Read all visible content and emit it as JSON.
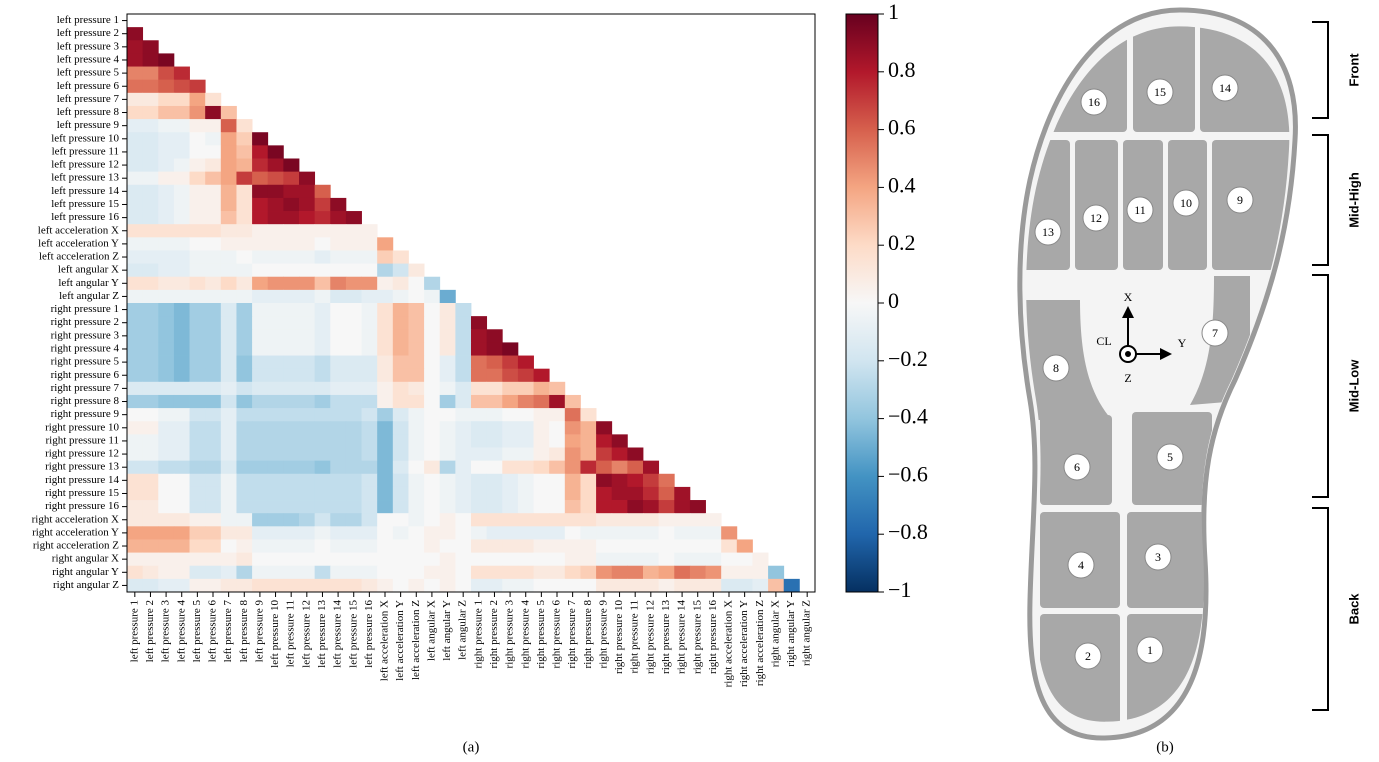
{
  "chart_data": {
    "type": "heatmap",
    "categories": [
      "left pressure 1",
      "left pressure 2",
      "left pressure 3",
      "left pressure 4",
      "left pressure 5",
      "left pressure 6",
      "left pressure 7",
      "left pressure 8",
      "left pressure 9",
      "left pressure 10",
      "left pressure 11",
      "left pressure 12",
      "left pressure 13",
      "left pressure 14",
      "left pressure 15",
      "left pressure 16",
      "left acceleration X",
      "left acceleration Y",
      "left acceleration Z",
      "left angular X",
      "left angular Y",
      "left angular Z",
      "right pressure 1",
      "right pressure 2",
      "right pressure 3",
      "right pressure 4",
      "right pressure 5",
      "right pressure 6",
      "right pressure 7",
      "right pressure 8",
      "right pressure 9",
      "right pressure 10",
      "right pressure 11",
      "right pressure 12",
      "right pressure 13",
      "right pressure 14",
      "right pressure 15",
      "right pressure 16",
      "right acceleration X",
      "right acceleration Y",
      "right acceleration Z",
      "right angular X",
      "right angular Y",
      "right angular Z"
    ],
    "values": [
      [],
      [
        0.9
      ],
      [
        0.85,
        0.9
      ],
      [
        0.85,
        0.9,
        0.95
      ],
      [
        0.5,
        0.5,
        0.65,
        0.75
      ],
      [
        0.55,
        0.55,
        0.6,
        0.65,
        0.7
      ],
      [
        0.1,
        0.1,
        0.2,
        0.2,
        0.4,
        0.15
      ],
      [
        0.2,
        0.2,
        0.3,
        0.3,
        0.45,
        0.9,
        0.3
      ],
      [
        -0.1,
        -0.1,
        -0.05,
        -0.05,
        0.05,
        0.05,
        0.6,
        0.15
      ],
      [
        -0.15,
        -0.15,
        -0.1,
        -0.1,
        0,
        -0.05,
        0.4,
        0.25,
        0.95
      ],
      [
        -0.15,
        -0.15,
        -0.1,
        -0.1,
        0,
        0,
        0.4,
        0.3,
        0.8,
        0.95
      ],
      [
        -0.15,
        -0.15,
        -0.1,
        -0.05,
        0.05,
        0.1,
        0.4,
        0.35,
        0.75,
        0.85,
        0.95
      ],
      [
        -0.05,
        -0.05,
        0.05,
        0.05,
        0.2,
        0.3,
        0.4,
        0.7,
        0.6,
        0.65,
        0.7,
        0.9
      ],
      [
        -0.15,
        -0.15,
        -0.1,
        -0.05,
        0.05,
        0.05,
        0.35,
        0.15,
        0.9,
        0.9,
        0.85,
        0.85,
        0.6
      ],
      [
        -0.15,
        -0.15,
        -0.1,
        -0.05,
        0.05,
        0.05,
        0.35,
        0.15,
        0.8,
        0.85,
        0.9,
        0.85,
        0.7,
        0.9
      ],
      [
        -0.15,
        -0.15,
        -0.1,
        -0.05,
        0.05,
        0.05,
        0.3,
        0.15,
        0.8,
        0.85,
        0.85,
        0.8,
        0.75,
        0.85,
        0.9
      ],
      [
        0.15,
        0.15,
        0.15,
        0.15,
        0.15,
        0.15,
        0.1,
        0.1,
        0.05,
        0.05,
        0.05,
        0.05,
        0.05,
        0.05,
        0.05,
        0.05
      ],
      [
        -0.05,
        -0.05,
        -0.05,
        -0.05,
        0,
        0,
        0.05,
        0.05,
        0.05,
        0.05,
        0.05,
        0.05,
        0,
        0.05,
        0.05,
        0.05,
        0.4
      ],
      [
        -0.1,
        -0.1,
        -0.1,
        -0.1,
        -0.05,
        -0.05,
        -0.05,
        0,
        -0.05,
        -0.05,
        -0.05,
        -0.05,
        -0.1,
        -0.05,
        -0.05,
        -0.05,
        0.25,
        0.15
      ],
      [
        -0.15,
        -0.15,
        -0.1,
        -0.1,
        -0.05,
        -0.05,
        -0.05,
        -0.05,
        0,
        0,
        0,
        0,
        0,
        0,
        0,
        0,
        -0.3,
        -0.2,
        0.1
      ],
      [
        0.15,
        0.15,
        0.1,
        0.1,
        0.15,
        0.1,
        0.2,
        0.1,
        0.4,
        0.45,
        0.45,
        0.45,
        0.3,
        0.5,
        0.45,
        0.45,
        0.05,
        0.1,
        0,
        -0.3
      ],
      [
        -0.05,
        -0.05,
        -0.05,
        -0.05,
        -0.05,
        -0.05,
        -0.05,
        -0.05,
        -0.1,
        -0.1,
        -0.1,
        -0.1,
        -0.05,
        -0.15,
        -0.15,
        -0.1,
        -0.1,
        -0.05,
        0,
        -0.05,
        -0.5
      ],
      [
        -0.35,
        -0.35,
        -0.4,
        -0.45,
        -0.35,
        -0.35,
        -0.15,
        -0.35,
        -0.05,
        -0.05,
        -0.05,
        -0.05,
        -0.1,
        0,
        0,
        -0.05,
        0.15,
        0.35,
        0.3,
        0,
        0.1,
        -0.25
      ],
      [
        -0.35,
        -0.35,
        -0.4,
        -0.45,
        -0.35,
        -0.35,
        -0.15,
        -0.35,
        -0.05,
        -0.05,
        -0.05,
        -0.05,
        -0.1,
        0,
        0,
        -0.05,
        0.15,
        0.35,
        0.3,
        0,
        0.1,
        -0.25,
        0.9
      ],
      [
        -0.35,
        -0.35,
        -0.4,
        -0.45,
        -0.35,
        -0.35,
        -0.15,
        -0.35,
        -0.05,
        -0.05,
        -0.05,
        -0.05,
        -0.1,
        0,
        0,
        -0.05,
        0.15,
        0.35,
        0.3,
        0,
        0.1,
        -0.25,
        0.85,
        0.9
      ],
      [
        -0.35,
        -0.35,
        -0.4,
        -0.45,
        -0.35,
        -0.35,
        -0.15,
        -0.35,
        -0.05,
        -0.05,
        -0.05,
        -0.05,
        -0.1,
        0,
        0,
        -0.05,
        0.15,
        0.35,
        0.3,
        0,
        0.1,
        -0.25,
        0.85,
        0.9,
        0.95
      ],
      [
        -0.35,
        -0.35,
        -0.4,
        -0.45,
        -0.35,
        -0.35,
        -0.15,
        -0.4,
        -0.2,
        -0.2,
        -0.2,
        -0.2,
        -0.25,
        -0.15,
        -0.15,
        -0.15,
        0.1,
        0.3,
        0.3,
        0,
        -0.1,
        -0.25,
        0.55,
        0.6,
        0.7,
        0.8
      ],
      [
        -0.35,
        -0.35,
        -0.4,
        -0.45,
        -0.35,
        -0.35,
        -0.15,
        -0.4,
        -0.2,
        -0.2,
        -0.2,
        -0.2,
        -0.25,
        -0.15,
        -0.15,
        -0.15,
        0.1,
        0.3,
        0.3,
        0,
        -0.1,
        -0.25,
        0.55,
        0.55,
        0.65,
        0.7,
        0.8
      ],
      [
        -0.15,
        -0.15,
        -0.15,
        -0.15,
        -0.15,
        -0.15,
        -0.1,
        -0.2,
        -0.15,
        -0.15,
        -0.15,
        -0.15,
        -0.15,
        -0.1,
        -0.1,
        -0.1,
        0.05,
        0.15,
        0.1,
        0,
        -0.05,
        -0.15,
        0.15,
        0.15,
        0.25,
        0.25,
        0.35,
        0.3
      ],
      [
        -0.35,
        -0.35,
        -0.4,
        -0.4,
        -0.4,
        -0.4,
        -0.2,
        -0.4,
        -0.3,
        -0.3,
        -0.3,
        -0.3,
        -0.35,
        -0.25,
        -0.25,
        -0.25,
        0.05,
        0.15,
        0.15,
        0,
        -0.35,
        -0.15,
        0.3,
        0.3,
        0.4,
        0.5,
        0.55,
        0.85,
        0.3
      ],
      [
        0,
        0,
        -0.05,
        -0.05,
        -0.2,
        -0.2,
        -0.1,
        -0.25,
        -0.25,
        -0.25,
        -0.25,
        -0.25,
        -0.25,
        -0.25,
        -0.25,
        -0.2,
        -0.35,
        -0.15,
        -0.05,
        0,
        0,
        -0.05,
        -0.05,
        -0.05,
        0,
        0,
        0.05,
        0.05,
        0.55,
        0.15
      ],
      [
        0.05,
        0.05,
        -0.1,
        -0.1,
        -0.25,
        -0.25,
        -0.1,
        -0.3,
        -0.3,
        -0.3,
        -0.3,
        -0.3,
        -0.3,
        -0.3,
        -0.3,
        -0.25,
        -0.45,
        -0.2,
        -0.05,
        0,
        -0.05,
        -0.1,
        -0.15,
        -0.15,
        -0.1,
        -0.1,
        0.05,
        0,
        0.45,
        0.35,
        0.9
      ],
      [
        -0.05,
        -0.05,
        -0.1,
        -0.1,
        -0.25,
        -0.25,
        -0.1,
        -0.3,
        -0.3,
        -0.3,
        -0.3,
        -0.3,
        -0.3,
        -0.3,
        -0.3,
        -0.25,
        -0.45,
        -0.2,
        -0.05,
        0,
        -0.05,
        -0.1,
        -0.15,
        -0.15,
        -0.1,
        -0.1,
        0.05,
        0,
        0.4,
        0.35,
        0.8,
        0.9
      ],
      [
        -0.05,
        -0.05,
        -0.1,
        -0.1,
        -0.25,
        -0.25,
        -0.1,
        -0.3,
        -0.3,
        -0.3,
        -0.3,
        -0.3,
        -0.3,
        -0.3,
        -0.3,
        -0.25,
        -0.45,
        -0.2,
        -0.05,
        0,
        -0.05,
        -0.1,
        -0.1,
        -0.1,
        -0.05,
        -0.05,
        0.05,
        0.1,
        0.45,
        0.35,
        0.7,
        0.8,
        0.9
      ],
      [
        -0.2,
        -0.2,
        -0.25,
        -0.25,
        -0.3,
        -0.3,
        -0.15,
        -0.35,
        -0.35,
        -0.35,
        -0.35,
        -0.35,
        -0.4,
        -0.3,
        -0.3,
        -0.3,
        -0.45,
        -0.15,
        0,
        0.1,
        -0.3,
        -0.1,
        0,
        0,
        0.15,
        0.15,
        0.2,
        0.3,
        0.45,
        0.75,
        0.6,
        0.5,
        0.6,
        0.85
      ],
      [
        0.15,
        0.15,
        0,
        0,
        -0.2,
        -0.2,
        -0.05,
        -0.25,
        -0.25,
        -0.25,
        -0.25,
        -0.25,
        -0.25,
        -0.25,
        -0.25,
        -0.2,
        -0.45,
        -0.2,
        -0.05,
        0,
        -0.05,
        -0.1,
        -0.15,
        -0.15,
        -0.1,
        -0.05,
        0,
        0,
        0.35,
        0.2,
        0.9,
        0.85,
        0.8,
        0.7,
        0.55
      ],
      [
        0.15,
        0.15,
        0,
        0,
        -0.2,
        -0.2,
        -0.05,
        -0.25,
        -0.25,
        -0.25,
        -0.25,
        -0.25,
        -0.25,
        -0.25,
        -0.25,
        -0.2,
        -0.45,
        -0.2,
        -0.05,
        0,
        -0.05,
        -0.1,
        -0.15,
        -0.15,
        -0.1,
        -0.05,
        0,
        0,
        0.35,
        0.2,
        0.8,
        0.85,
        0.85,
        0.75,
        0.6,
        0.85
      ],
      [
        0.1,
        0.1,
        0,
        0,
        -0.2,
        -0.2,
        -0.05,
        -0.25,
        -0.25,
        -0.25,
        -0.25,
        -0.25,
        -0.25,
        -0.25,
        -0.25,
        -0.2,
        -0.45,
        -0.2,
        -0.05,
        0,
        -0.05,
        -0.1,
        -0.15,
        -0.15,
        -0.1,
        -0.05,
        0,
        0,
        0.3,
        0.2,
        0.8,
        0.8,
        0.9,
        0.85,
        0.7,
        0.85,
        0.9
      ],
      [
        0.1,
        0.1,
        0.1,
        0.1,
        0.05,
        0.05,
        -0.05,
        -0.05,
        -0.35,
        -0.35,
        -0.35,
        -0.3,
        -0.2,
        -0.3,
        -0.3,
        -0.2,
        0,
        0,
        -0.05,
        0,
        0.05,
        0,
        0.15,
        0.15,
        0.15,
        0.15,
        0.15,
        0.15,
        0.15,
        0.15,
        0.1,
        0.1,
        0.1,
        0.1,
        0.05,
        0.05,
        0.05,
        0.05
      ],
      [
        0.4,
        0.4,
        0.4,
        0.4,
        0.25,
        0.25,
        0.1,
        0.1,
        -0.1,
        -0.1,
        -0.1,
        -0.1,
        -0.05,
        -0.1,
        -0.1,
        -0.1,
        0,
        -0.05,
        0,
        0.05,
        0.05,
        0,
        -0.05,
        -0.1,
        -0.1,
        -0.1,
        -0.1,
        -0.1,
        0,
        -0.05,
        -0.05,
        -0.05,
        -0.05,
        -0.05,
        0,
        -0.05,
        -0.05,
        -0.05,
        0.45
      ],
      [
        0.35,
        0.35,
        0.35,
        0.35,
        0.2,
        0.2,
        0,
        0.05,
        -0.05,
        -0.05,
        -0.05,
        -0.05,
        0,
        -0.05,
        -0.05,
        -0.05,
        0,
        0,
        0,
        0.05,
        0,
        0,
        0.1,
        0.1,
        0.1,
        0.1,
        0.05,
        0.05,
        0.05,
        0.05,
        0,
        0,
        0,
        0,
        0,
        0,
        0,
        0,
        0.15,
        0.4
      ],
      [
        0.05,
        0.05,
        0.05,
        0.05,
        0.05,
        0.05,
        0.05,
        0.1,
        0,
        0,
        0,
        0,
        0,
        0,
        0,
        0,
        0,
        0,
        0,
        0,
        0.05,
        0,
        0,
        0,
        0,
        0,
        0,
        0,
        0.05,
        0.05,
        -0.05,
        -0.05,
        -0.05,
        -0.05,
        0,
        -0.05,
        -0.05,
        -0.05,
        0,
        0,
        0.05
      ],
      [
        0.15,
        0.1,
        0.05,
        0.05,
        -0.15,
        -0.15,
        -0.1,
        -0.3,
        -0.05,
        -0.05,
        -0.05,
        -0.05,
        -0.25,
        -0.05,
        -0.05,
        -0.05,
        0,
        0,
        0,
        0.05,
        0.05,
        0,
        0.15,
        0.15,
        0.15,
        0.15,
        0.1,
        0.1,
        0.2,
        0.25,
        0.45,
        0.5,
        0.5,
        0.35,
        0.4,
        0.55,
        0.5,
        0.45,
        0.05,
        0.05,
        0.05,
        -0.4
      ],
      [
        -0.15,
        -0.15,
        -0.1,
        -0.1,
        0.05,
        0.05,
        0.1,
        0.1,
        0.15,
        0.15,
        0.15,
        0.15,
        0.15,
        0.15,
        0.15,
        0.1,
        0.05,
        0,
        0.05,
        0,
        0.05,
        0,
        -0.1,
        -0.1,
        -0.05,
        -0.05,
        0,
        0,
        0,
        0,
        0.1,
        0.1,
        0.1,
        0.1,
        0.05,
        0.1,
        0.1,
        0.1,
        -0.15,
        -0.15,
        -0.1,
        0.3,
        -0.75
      ]
    ],
    "clim": [
      -1,
      1
    ],
    "cticks": [
      1,
      0.8,
      0.6,
      0.4,
      0.2,
      0,
      {
        "value": -0.2,
        "label": "−0.2"
      },
      {
        "value": -0.4,
        "label": "−0.4"
      },
      {
        "value": -0.6,
        "label": "−0.6"
      },
      {
        "value": -0.8,
        "label": "−0.8"
      },
      {
        "value": -1,
        "label": "−1"
      }
    ],
    "colormap": [
      "#053061",
      "#2166ac",
      "#4393c3",
      "#92c5de",
      "#d1e5f0",
      "#f7f7f7",
      "#fddbc7",
      "#f4a582",
      "#d6604d",
      "#b2182b",
      "#67001f"
    ],
    "caption": "(a)"
  },
  "diagram": {
    "sensors": [
      "1",
      "2",
      "3",
      "4",
      "5",
      "6",
      "7",
      "8",
      "9",
      "10",
      "11",
      "12",
      "13",
      "14",
      "15",
      "16"
    ],
    "axis_labels": {
      "x": "X",
      "y": "Y",
      "z": "Z",
      "origin": "CL"
    },
    "regions": [
      "Front",
      "Mid-High",
      "Mid-Low",
      "Back"
    ],
    "caption": "(b)"
  }
}
